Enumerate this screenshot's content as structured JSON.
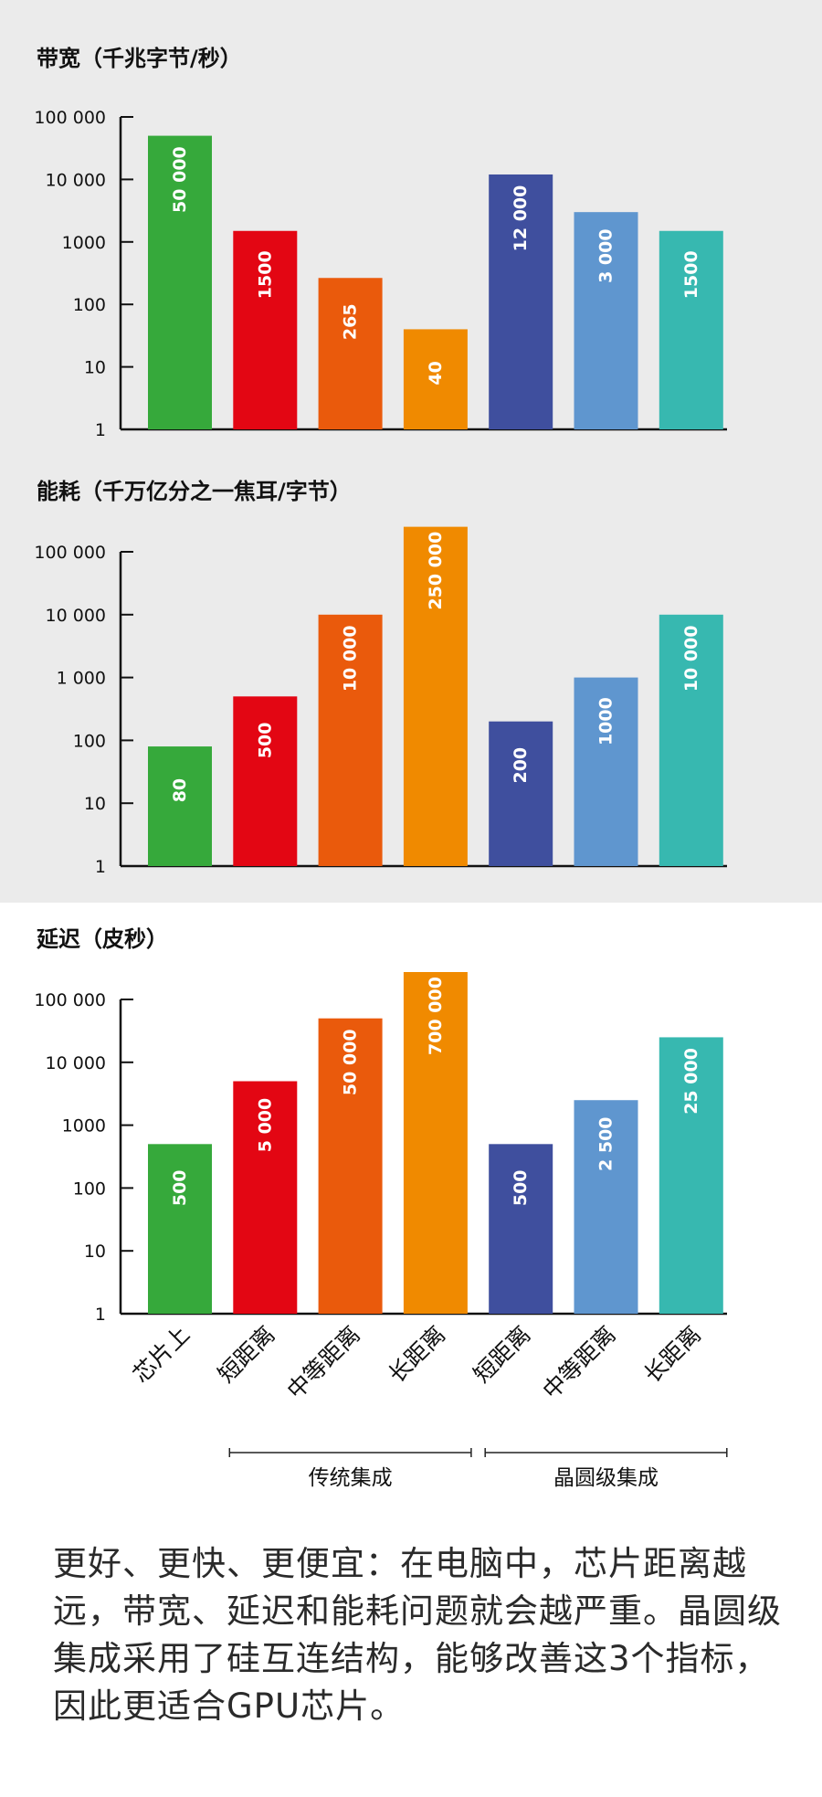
{
  "chart_data": [
    {
      "type": "bar",
      "title": "带宽（千兆字节/秒）",
      "scale": "log",
      "ylim": [
        1,
        100000
      ],
      "y_ticks": [
        "1",
        "10",
        "100",
        "1000",
        "10 000",
        "100 000"
      ],
      "values": [
        50000,
        1500,
        265,
        40,
        12000,
        3000,
        1500
      ],
      "value_labels": [
        "50 000",
        "1500",
        "265",
        "40",
        "12 000",
        "3 000",
        "1500"
      ]
    },
    {
      "type": "bar",
      "title": "能耗（千万亿分之一焦耳/字节）",
      "scale": "log",
      "ylim": [
        1,
        100000
      ],
      "y_ticks": [
        "1",
        "10",
        "100",
        "1 000",
        "10 000",
        "100 000"
      ],
      "values": [
        80,
        500,
        10000,
        250000,
        200,
        1000,
        10000
      ],
      "value_labels": [
        "80",
        "500",
        "10 000",
        "250 000",
        "200",
        "1000",
        "10 000"
      ]
    },
    {
      "type": "bar",
      "title": "延迟（皮秒）",
      "scale": "log",
      "ylim": [
        1,
        100000
      ],
      "y_ticks": [
        "1",
        "10",
        "100",
        "1000",
        "10 000",
        "100 000"
      ],
      "values": [
        500,
        5000,
        50000,
        700000,
        500,
        2500,
        25000
      ],
      "value_labels": [
        "500",
        "5 000",
        "50 000",
        "700 000",
        "500",
        "2 500",
        "25 000"
      ]
    }
  ],
  "categories": [
    "芯片上",
    "短距离",
    "中等距离",
    "长距离",
    "短距离",
    "中等距离",
    "长距离"
  ],
  "bar_colors": [
    "#36a93b",
    "#e30613",
    "#ea5a0c",
    "#f08a00",
    "#3f4f9e",
    "#5f96cf",
    "#37b8b0"
  ],
  "groups": [
    {
      "label": "传统集成",
      "from": 1,
      "to": 3
    },
    {
      "label": "晶圆级集成",
      "from": 4,
      "to": 6
    }
  ],
  "caption": "更好、更快、更便宜：在电脑中，芯片距离越远，带宽、延迟和能耗问题就会越严重。晶圆级集成采用了硅互连结构，能够改善这3个指标，因此更适合GPU芯片。"
}
